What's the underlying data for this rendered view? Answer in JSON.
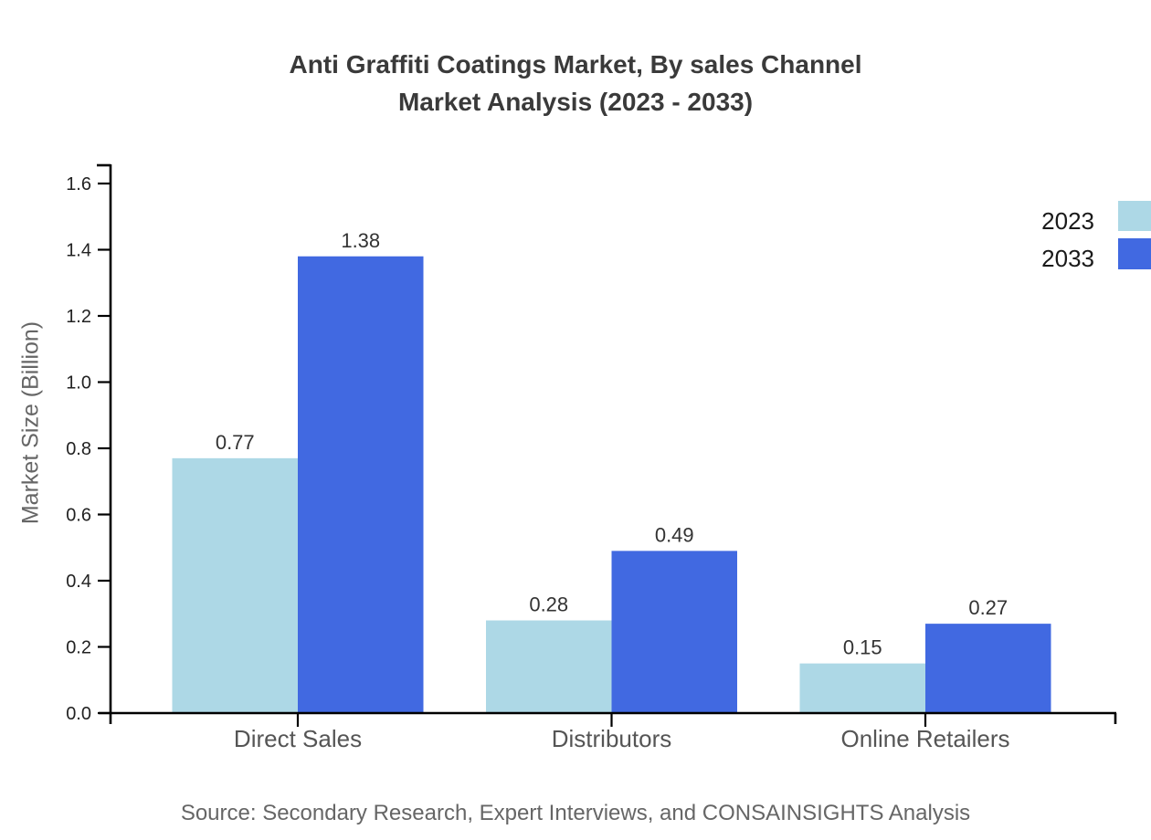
{
  "page": {
    "background": "#ffffff"
  },
  "chart_data": {
    "type": "bar",
    "title_line1": "Anti Graffiti Coatings Market, By sales Channel",
    "title_line2": "Market Analysis (2023 - 2033)",
    "categories": [
      "Direct Sales",
      "Distributors",
      "Online Retailers"
    ],
    "series": [
      {
        "name": "2023",
        "color": "#ADD8E6",
        "values": [
          0.77,
          0.28,
          0.15
        ]
      },
      {
        "name": "2033",
        "color": "#4169E1",
        "values": [
          1.38,
          0.49,
          0.27
        ]
      }
    ],
    "ylabel": "Market Size (Billion)",
    "xlabel": "",
    "ylim": [
      0,
      1.6
    ],
    "yticks": [
      0.0,
      0.2,
      0.4,
      0.6,
      0.8,
      1.0,
      1.2,
      1.4,
      1.6
    ],
    "grid": false,
    "legend_position": "top-right",
    "source": "Source: Secondary Research, Expert Interviews, and CONSAINSIGHTS Analysis",
    "colors": {
      "axis": "#000000",
      "title_text": "#3a3a3a",
      "ytick_text": "#222222",
      "value_label_text": "#333333",
      "category_text": "#555555",
      "muted_text": "#666666",
      "legend_text": "#1a1a1a"
    }
  }
}
